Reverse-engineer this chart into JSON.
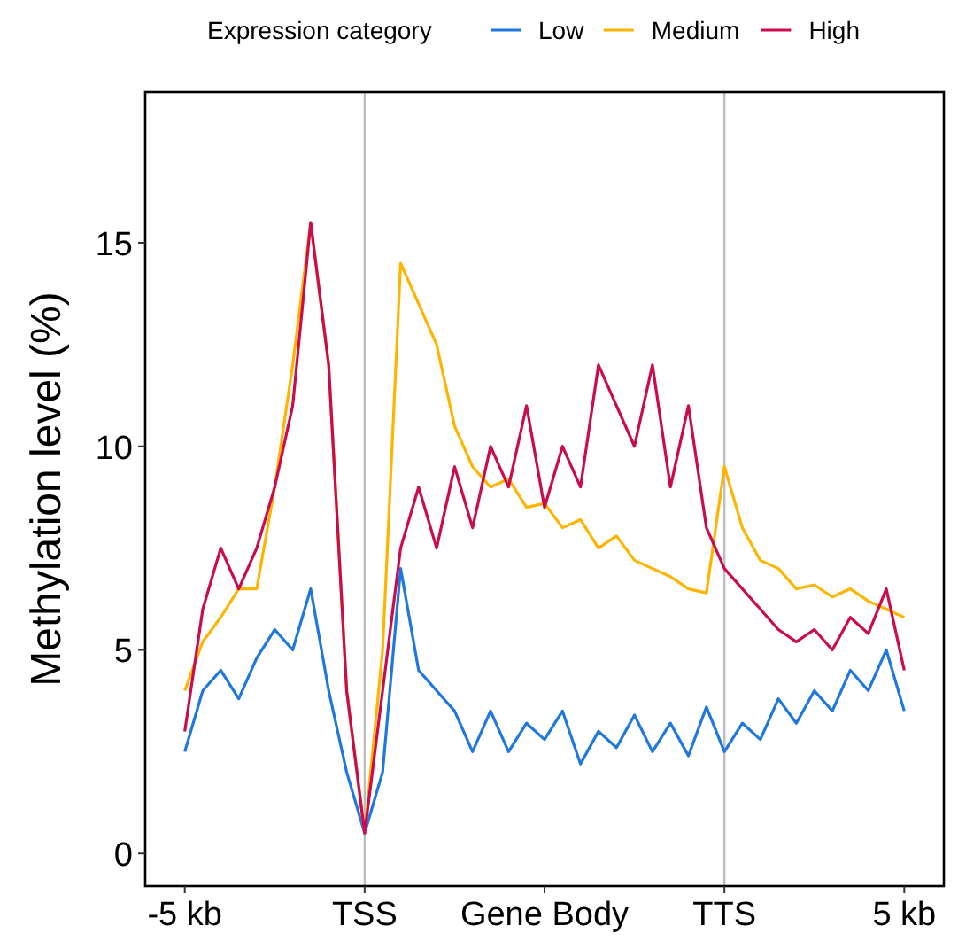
{
  "chart_data": {
    "type": "line",
    "ylabel": "Methylation level (%)",
    "legend_title": "Expression category",
    "legend": "top",
    "grid": false,
    "line_style": "solid",
    "marker": "none",
    "categories": [
      "-5 kb",
      null,
      null,
      null,
      null,
      null,
      null,
      null,
      null,
      null,
      "TSS",
      null,
      null,
      null,
      null,
      null,
      null,
      null,
      null,
      null,
      "Gene Body",
      null,
      null,
      null,
      null,
      null,
      null,
      null,
      null,
      null,
      "TTS",
      null,
      null,
      null,
      null,
      null,
      null,
      null,
      null,
      null,
      "5 kb"
    ],
    "ylim": [
      -0.8,
      18.7
    ],
    "yticks": [
      0,
      5,
      10,
      15
    ],
    "ref_lines": [
      {
        "axis": "x",
        "value": "TSS",
        "color": "#bebebe"
      },
      {
        "axis": "x",
        "value": "TTS",
        "color": "#bebebe"
      }
    ],
    "series": [
      {
        "name": "Low",
        "color": "#1f77e0",
        "values": [
          2.5,
          4,
          4.5,
          3.8,
          4.8,
          5.5,
          5,
          6.5,
          4,
          2,
          0.5,
          2,
          7,
          4.5,
          4,
          3.5,
          2.5,
          3.5,
          2.5,
          3.2,
          2.8,
          3.5,
          2.2,
          3,
          2.6,
          3.4,
          2.5,
          3.2,
          2.4,
          3.6,
          2.5,
          3.2,
          2.8,
          3.8,
          3.2,
          4,
          3.5,
          4.5,
          4,
          5,
          3.5
        ]
      },
      {
        "name": "Medium",
        "color": "#ffb400",
        "values": [
          4,
          5.2,
          5.8,
          6.5,
          6.5,
          9,
          12,
          15.5,
          12,
          4,
          0.5,
          5,
          14.5,
          13.5,
          12.5,
          10.5,
          9.5,
          9,
          9.2,
          8.5,
          8.6,
          8,
          8.2,
          7.5,
          7.8,
          7.2,
          7,
          6.8,
          6.5,
          6.4,
          9.5,
          8,
          7.2,
          7,
          6.5,
          6.6,
          6.3,
          6.5,
          6.2,
          6,
          5.8
        ]
      },
      {
        "name": "High",
        "color": "#cc0a4e",
        "values": [
          3,
          6,
          7.5,
          6.5,
          7.5,
          9,
          11,
          15.5,
          12,
          4,
          0.5,
          4,
          7.5,
          9,
          7.5,
          9.5,
          8,
          10,
          9,
          11,
          8.5,
          10,
          9,
          12,
          11,
          10,
          12,
          9,
          11,
          8,
          7,
          6.5,
          6,
          5.5,
          5.2,
          5.5,
          5,
          5.8,
          5.4,
          6.5,
          4.5
        ]
      }
    ]
  }
}
